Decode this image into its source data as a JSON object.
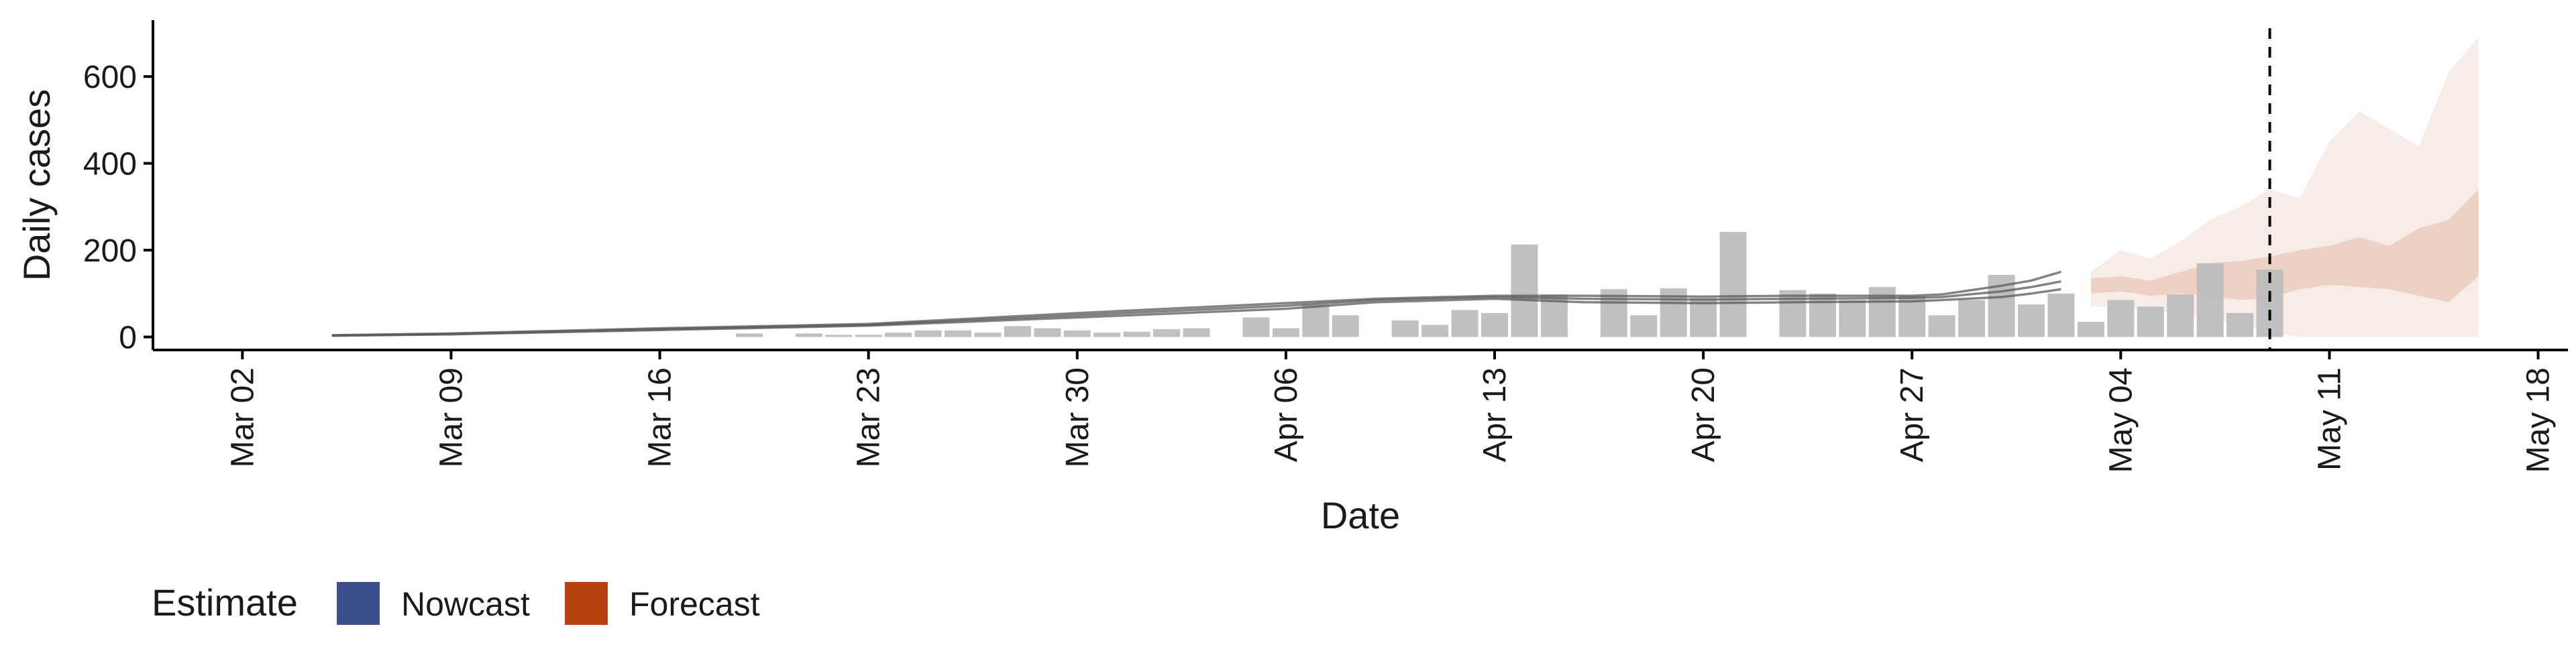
{
  "chart_data": {
    "type": "bar",
    "xlabel": "Date",
    "ylabel": "Daily cases",
    "xlim": [
      "2020-02-28",
      "2020-05-19"
    ],
    "ylim": [
      -30,
      730
    ],
    "x_ticks": [
      {
        "date": "2020-03-02",
        "label": "Mar 02"
      },
      {
        "date": "2020-03-09",
        "label": "Mar 09"
      },
      {
        "date": "2020-03-16",
        "label": "Mar 16"
      },
      {
        "date": "2020-03-23",
        "label": "Mar 23"
      },
      {
        "date": "2020-03-30",
        "label": "Mar 30"
      },
      {
        "date": "2020-04-06",
        "label": "Apr 06"
      },
      {
        "date": "2020-04-13",
        "label": "Apr 13"
      },
      {
        "date": "2020-04-20",
        "label": "Apr 20"
      },
      {
        "date": "2020-04-27",
        "label": "Apr 27"
      },
      {
        "date": "2020-05-04",
        "label": "May 04"
      },
      {
        "date": "2020-05-11",
        "label": "May 11"
      },
      {
        "date": "2020-05-18",
        "label": "May 18"
      }
    ],
    "y_ticks": [
      0,
      200,
      400,
      600
    ],
    "grid": false,
    "legend": {
      "title": "Estimate",
      "position": "bottom-left",
      "entries": [
        {
          "label": "Nowcast",
          "color": "#3b4f8a"
        },
        {
          "label": "Forecast",
          "color": "#b5420f"
        }
      ]
    },
    "observed_cases": {
      "color": "#bdbdbd",
      "dates": [
        "2020-03-19",
        "2020-03-21",
        "2020-03-22",
        "2020-03-23",
        "2020-03-24",
        "2020-03-25",
        "2020-03-26",
        "2020-03-27",
        "2020-03-28",
        "2020-03-29",
        "2020-03-30",
        "2020-03-31",
        "2020-04-01",
        "2020-04-02",
        "2020-04-03",
        "2020-04-05",
        "2020-04-06",
        "2020-04-07",
        "2020-04-08",
        "2020-04-10",
        "2020-04-11",
        "2020-04-12",
        "2020-04-13",
        "2020-04-14",
        "2020-04-15",
        "2020-04-17",
        "2020-04-18",
        "2020-04-19",
        "2020-04-20",
        "2020-04-21",
        "2020-04-23",
        "2020-04-24",
        "2020-04-25",
        "2020-04-26",
        "2020-04-27",
        "2020-04-28",
        "2020-04-29",
        "2020-04-30",
        "2020-05-01",
        "2020-05-02",
        "2020-05-03",
        "2020-05-04",
        "2020-05-05",
        "2020-05-06",
        "2020-05-07",
        "2020-05-08",
        "2020-05-09"
      ],
      "values": [
        8,
        8,
        5,
        5,
        10,
        15,
        15,
        10,
        25,
        20,
        15,
        10,
        12,
        18,
        20,
        45,
        20,
        75,
        50,
        38,
        28,
        62,
        55,
        213,
        98,
        110,
        50,
        112,
        90,
        242,
        108,
        100,
        85,
        115,
        95,
        50,
        85,
        143,
        75,
        100,
        35,
        85,
        70,
        98,
        170,
        55,
        155
      ]
    },
    "nowcast_lines": {
      "color": "#5a5a5a",
      "series": [
        {
          "x": [
            "2020-03-05",
            "2020-03-09",
            "2020-03-16",
            "2020-03-23",
            "2020-03-30",
            "2020-04-06",
            "2020-04-09",
            "2020-04-13",
            "2020-04-16",
            "2020-04-20",
            "2020-04-23",
            "2020-04-27",
            "2020-04-28",
            "2020-04-30",
            "2020-05-01",
            "2020-05-02"
          ],
          "y": [
            4,
            8,
            20,
            30,
            55,
            78,
            88,
            95,
            95,
            93,
            95,
            95,
            98,
            118,
            130,
            150
          ]
        },
        {
          "x": [
            "2020-03-05",
            "2020-03-09",
            "2020-03-16",
            "2020-03-23",
            "2020-03-30",
            "2020-04-06",
            "2020-04-09",
            "2020-04-13",
            "2020-04-16",
            "2020-04-20",
            "2020-04-23",
            "2020-04-27",
            "2020-04-28",
            "2020-04-30",
            "2020-05-01",
            "2020-05-02"
          ],
          "y": [
            3,
            6,
            16,
            26,
            45,
            65,
            80,
            88,
            80,
            78,
            80,
            82,
            85,
            92,
            100,
            110
          ]
        },
        {
          "x": [
            "2020-03-05",
            "2020-03-09",
            "2020-03-16",
            "2020-03-23",
            "2020-03-30",
            "2020-04-06",
            "2020-04-09",
            "2020-04-13",
            "2020-04-16",
            "2020-04-20",
            "2020-04-23",
            "2020-04-27",
            "2020-04-28",
            "2020-04-30",
            "2020-05-01",
            "2020-05-02"
          ],
          "y": [
            3,
            7,
            18,
            28,
            50,
            72,
            85,
            92,
            88,
            86,
            88,
            90,
            92,
            105,
            115,
            128
          ]
        }
      ]
    },
    "forecast": {
      "color": "#b5420f",
      "dates": [
        "2020-05-03",
        "2020-05-04",
        "2020-05-05",
        "2020-05-06",
        "2020-05-07",
        "2020-05-08",
        "2020-05-09",
        "2020-05-10",
        "2020-05-11",
        "2020-05-12",
        "2020-05-13",
        "2020-05-14",
        "2020-05-15",
        "2020-05-16"
      ],
      "outer_upper": [
        150,
        200,
        180,
        220,
        270,
        300,
        340,
        320,
        450,
        520,
        480,
        440,
        610,
        690
      ],
      "outer_lower": [
        70,
        70,
        60,
        55,
        40,
        30,
        10,
        0,
        0,
        0,
        0,
        0,
        0,
        0
      ],
      "inner_upper": [
        135,
        140,
        130,
        150,
        170,
        175,
        185,
        200,
        210,
        230,
        210,
        250,
        270,
        340
      ],
      "inner_lower": [
        100,
        105,
        95,
        100,
        95,
        85,
        90,
        110,
        120,
        115,
        110,
        95,
        80,
        140
      ]
    },
    "annotations": [
      {
        "type": "vertical-dashed-line",
        "date": "2020-05-09"
      }
    ]
  }
}
